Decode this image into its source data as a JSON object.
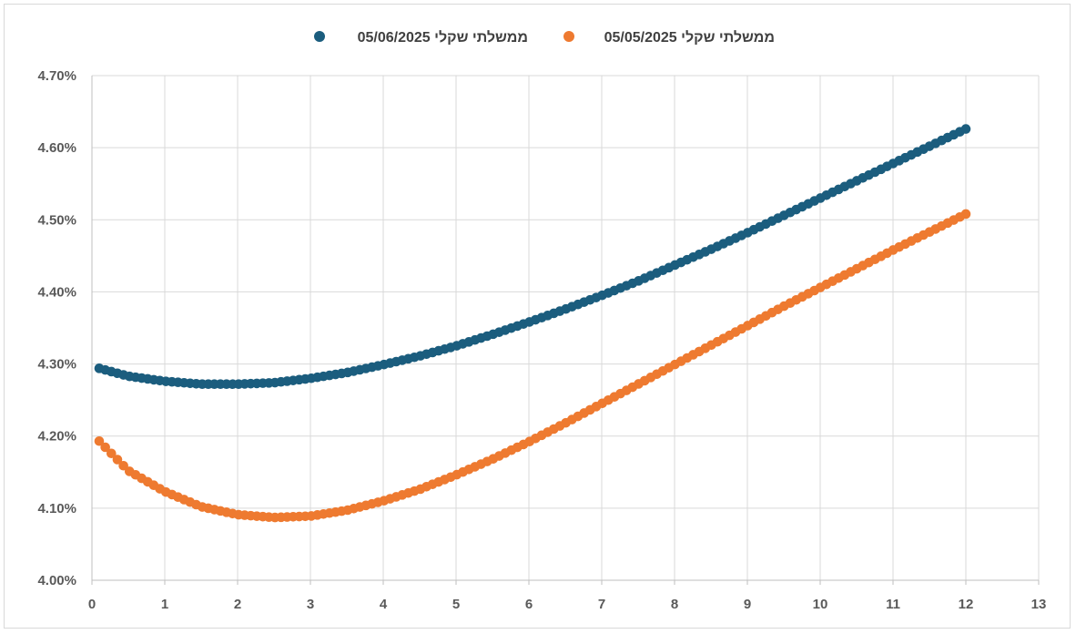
{
  "chart_data": {
    "type": "scatter",
    "title": "",
    "xlabel": "",
    "ylabel": "",
    "xlim": [
      0,
      13
    ],
    "ylim": [
      4.0,
      4.7
    ],
    "x_ticks": [
      0,
      1,
      2,
      3,
      4,
      5,
      6,
      7,
      8,
      9,
      10,
      11,
      12,
      13
    ],
    "y_ticks": [
      4.0,
      4.1,
      4.2,
      4.3,
      4.4,
      4.5,
      4.6,
      4.7
    ],
    "y_tick_labels": [
      "4.00%",
      "4.10%",
      "4.20%",
      "4.30%",
      "4.40%",
      "4.50%",
      "4.60%",
      "4.70%"
    ],
    "grid": true,
    "legend_position": "top",
    "colors": {
      "series_2025_06_05": "#1b5d7e",
      "series_2025_05_05": "#ee7a30",
      "grid": "#d9d9d9",
      "axis": "#bfbfbf",
      "tick_text": "#595959"
    },
    "series": [
      {
        "name": "ממשלתי שקלי 05/06/2025",
        "key": "series_2025_06_05",
        "x": [
          0.1,
          0.5,
          1.0,
          1.5,
          2.0,
          2.5,
          3.0,
          3.5,
          4.0,
          4.5,
          5.0,
          5.5,
          6.0,
          6.5,
          7.0,
          7.5,
          8.0,
          8.5,
          9.0,
          9.5,
          10.0,
          10.5,
          11.0,
          11.5,
          12.0
        ],
        "y": [
          4.294,
          4.283,
          4.276,
          4.272,
          4.272,
          4.274,
          4.28,
          4.288,
          4.299,
          4.311,
          4.325,
          4.341,
          4.358,
          4.376,
          4.395,
          4.415,
          4.437,
          4.459,
          4.482,
          4.506,
          4.53,
          4.554,
          4.578,
          4.602,
          4.626
        ]
      },
      {
        "name": "ממשלתי שקלי 05/05/2025",
        "key": "series_2025_05_05",
        "x": [
          0.1,
          0.5,
          1.0,
          1.5,
          2.0,
          2.5,
          3.0,
          3.5,
          4.0,
          4.5,
          5.0,
          5.5,
          6.0,
          6.5,
          7.0,
          7.5,
          8.0,
          8.5,
          9.0,
          9.5,
          10.0,
          10.5,
          11.0,
          11.5,
          12.0
        ],
        "y": [
          4.193,
          4.152,
          4.123,
          4.102,
          4.091,
          4.087,
          4.089,
          4.097,
          4.11,
          4.126,
          4.146,
          4.168,
          4.192,
          4.218,
          4.245,
          4.272,
          4.299,
          4.326,
          4.353,
          4.38,
          4.406,
          4.432,
          4.458,
          4.483,
          4.508
        ]
      }
    ]
  }
}
